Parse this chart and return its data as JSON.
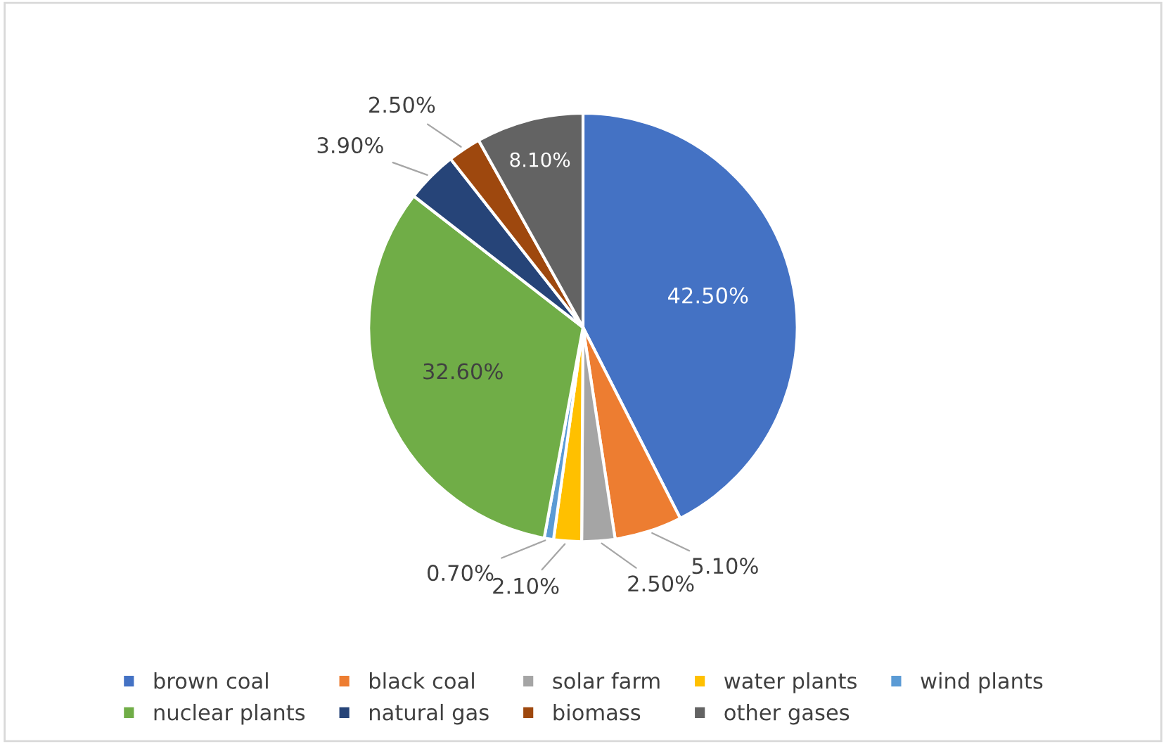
{
  "chart_data": {
    "type": "pie",
    "categories": [
      "brown coal",
      "black coal",
      "solar farm",
      "water plants",
      "wind plants",
      "nuclear plants",
      "natural gas",
      "biomass",
      "other gases"
    ],
    "values": [
      42.5,
      5.1,
      2.5,
      2.1,
      0.7,
      32.6,
      3.9,
      2.5,
      8.1
    ],
    "value_labels": [
      "42.50%",
      "5.10%",
      "2.50%",
      "2.10%",
      "0.70%",
      "32.60%",
      "3.90%",
      "2.50%",
      "8.10%"
    ],
    "colors": [
      "#4472c4",
      "#ed7d31",
      "#a5a5a5",
      "#ffc000",
      "#5b9bd5",
      "#70ad47",
      "#264478",
      "#9e480e",
      "#636363"
    ],
    "legend": "bottom"
  }
}
